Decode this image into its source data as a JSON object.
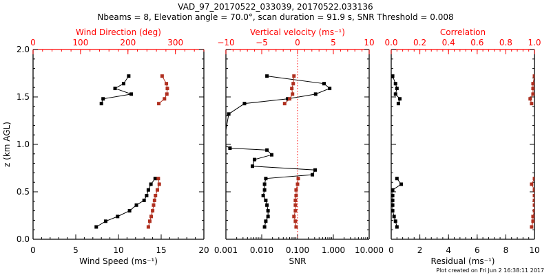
{
  "title_line1": "VAD_97_20170522_033039, 20170522.033136",
  "title_line2": "Nbeams = 8, Elevation angle = 70.0°, scan duration = 91.9 s, SNR Threshold = 0.008",
  "footer": "Plot created on Fri Jun  2 16:38:11 2017",
  "colors": {
    "primary": "#000000",
    "secondary_axis": "#ff0000",
    "secondary_series": "#b03020"
  },
  "chart_data": [
    {
      "type": "line",
      "panel": "wind",
      "ylabel": "z (km AGL)",
      "ylim": [
        0.0,
        2.0
      ],
      "yticks": [
        "0.0",
        "0.5",
        "1.0",
        "1.5",
        "2.0"
      ],
      "yticks_values": [
        0.0,
        0.5,
        1.0,
        1.5,
        2.0
      ],
      "bottom_axis": {
        "label": "Wind Speed (ms⁻¹)",
        "range": [
          0,
          20
        ],
        "ticks": [
          "0",
          "5",
          "10",
          "15",
          "20"
        ],
        "tick_values": [
          0,
          5,
          10,
          15,
          20
        ],
        "scale": "linear"
      },
      "top_axis": {
        "label": "Wind Direction (deg)",
        "range": [
          0,
          360
        ],
        "ticks": [
          "0",
          "100",
          "200",
          "300"
        ],
        "tick_values": [
          0,
          100,
          200,
          300
        ],
        "scale": "linear"
      },
      "series": [
        {
          "name": "Wind Speed",
          "axis": "bottom",
          "color": "#000000",
          "segments": [
            {
              "z": [
                1.43,
                1.48,
                1.53,
                1.59,
                1.64,
                1.72
              ],
              "x": [
                8.0,
                8.2,
                11.5,
                9.6,
                10.6,
                11.2
              ]
            },
            {
              "z": [
                0.13,
                0.19,
                0.24,
                0.3,
                0.36,
                0.41,
                0.46,
                0.52,
                0.58,
                0.64
              ],
              "x": [
                7.4,
                8.5,
                9.9,
                11.3,
                12.1,
                13.0,
                13.3,
                13.5,
                13.8,
                14.3
              ]
            }
          ]
        },
        {
          "name": "Wind Direction",
          "axis": "top",
          "color": "#b03020",
          "segments": [
            {
              "z": [
                1.43,
                1.48,
                1.53,
                1.59,
                1.64,
                1.72
              ],
              "x": [
                265,
                277,
                282,
                283,
                281,
                272
              ]
            },
            {
              "z": [
                0.13,
                0.19,
                0.24,
                0.3,
                0.36,
                0.41,
                0.46,
                0.52,
                0.58,
                0.64
              ],
              "x": [
                243,
                246,
                249,
                252,
                254,
                256,
                258,
                262,
                266,
                264
              ]
            }
          ]
        }
      ]
    },
    {
      "type": "line",
      "panel": "snr",
      "ylim": [
        0.0,
        2.0
      ],
      "bottom_axis": {
        "label": "SNR",
        "range": [
          0.001,
          10.0
        ],
        "ticks": [
          "0.001",
          "0.010",
          "0.100",
          "1.000",
          "10.000"
        ],
        "tick_values": [
          0.001,
          0.01,
          0.1,
          1,
          10
        ],
        "scale": "log"
      },
      "top_axis": {
        "label": "Vertical velocity (ms⁻¹)",
        "range": [
          -10,
          10
        ],
        "ticks": [
          "−10",
          "−5",
          "0",
          "5",
          "10"
        ],
        "tick_values": [
          -10,
          -5,
          0,
          5,
          10
        ],
        "scale": "linear"
      },
      "reference_line": {
        "axis": "top",
        "value": 0,
        "style": "dotted",
        "color": "#ff0000"
      },
      "series": [
        {
          "name": "SNR",
          "axis": "bottom",
          "color": "#000000",
          "segments": [
            {
              "z": [
                0.13,
                0.19,
                0.24,
                0.3,
                0.36,
                0.41,
                0.46,
                0.52,
                0.58,
                0.64,
                0.68,
                0.73,
                0.77,
                0.84,
                0.89,
                0.94,
                0.96,
                1.0,
                1.32,
                1.43,
                1.48,
                1.53,
                1.59,
                1.64,
                1.72
              ],
              "x": [
                0.012,
                0.013,
                0.015,
                0.015,
                0.014,
                0.013,
                0.011,
                0.012,
                0.012,
                0.013,
                0.26,
                0.31,
                0.0055,
                0.0063,
                0.019,
                0.014,
                0.0013,
                0.00085,
                0.0012,
                0.0033,
                0.053,
                0.32,
                0.79,
                0.55,
                0.014
              ]
            }
          ]
        },
        {
          "name": "Vertical velocity",
          "axis": "top",
          "color": "#b03020",
          "segments": [
            {
              "z": [
                1.43,
                1.48,
                1.53,
                1.59,
                1.64,
                1.72
              ],
              "x": [
                -1.8,
                -1.1,
                -0.7,
                -0.8,
                -0.6,
                -0.5
              ]
            },
            {
              "z": [
                0.13,
                0.19,
                0.24,
                0.3,
                0.36,
                0.41,
                0.46,
                0.52,
                0.58,
                0.64
              ],
              "x": [
                -0.2,
                -0.3,
                -0.5,
                -0.3,
                -0.3,
                -0.3,
                -0.2,
                -0.2,
                0.0,
                0.1
              ]
            }
          ]
        }
      ]
    },
    {
      "type": "line",
      "panel": "residual",
      "ylim": [
        0.0,
        2.0
      ],
      "bottom_axis": {
        "label": "Residual (ms⁻¹)",
        "range": [
          0,
          10
        ],
        "ticks": [
          "0",
          "2",
          "4",
          "6",
          "8",
          "10"
        ],
        "tick_values": [
          0,
          2,
          4,
          6,
          8,
          10
        ],
        "scale": "linear"
      },
      "top_axis": {
        "label": "Correlation",
        "range": [
          0.0,
          1.0
        ],
        "ticks": [
          "0.0",
          "0.2",
          "0.4",
          "0.6",
          "0.8",
          "1.0"
        ],
        "tick_values": [
          0,
          0.2,
          0.4,
          0.6,
          0.8,
          1.0
        ],
        "scale": "linear"
      },
      "series": [
        {
          "name": "Residual",
          "axis": "bottom",
          "color": "#000000",
          "segments": [
            {
              "z": [
                1.43,
                1.48,
                1.53,
                1.59,
                1.64,
                1.72
              ],
              "x": [
                0.5,
                0.6,
                0.3,
                0.4,
                0.3,
                0.1
              ]
            },
            {
              "z": [
                0.13,
                0.19,
                0.24,
                0.3,
                0.36,
                0.41,
                0.46,
                0.52,
                0.58,
                0.64
              ],
              "x": [
                0.4,
                0.3,
                0.2,
                0.1,
                0.1,
                0.1,
                0.1,
                0.1,
                0.7,
                0.4
              ]
            }
          ]
        },
        {
          "name": "Correlation",
          "axis": "top",
          "color": "#b03020",
          "segments": [
            {
              "z": [
                1.43,
                1.48,
                1.53,
                1.59,
                1.64,
                1.72
              ],
              "x": [
                0.98,
                0.97,
                0.99,
                0.99,
                0.99,
                1.0
              ]
            },
            {
              "z": [
                0.13,
                0.19,
                0.24,
                0.3,
                0.36,
                0.41,
                0.46,
                0.52,
                0.58,
                0.64
              ],
              "x": [
                0.98,
                0.99,
                0.99,
                1.0,
                1.0,
                1.0,
                1.0,
                1.0,
                0.98,
                1.0
              ]
            }
          ]
        }
      ]
    }
  ]
}
